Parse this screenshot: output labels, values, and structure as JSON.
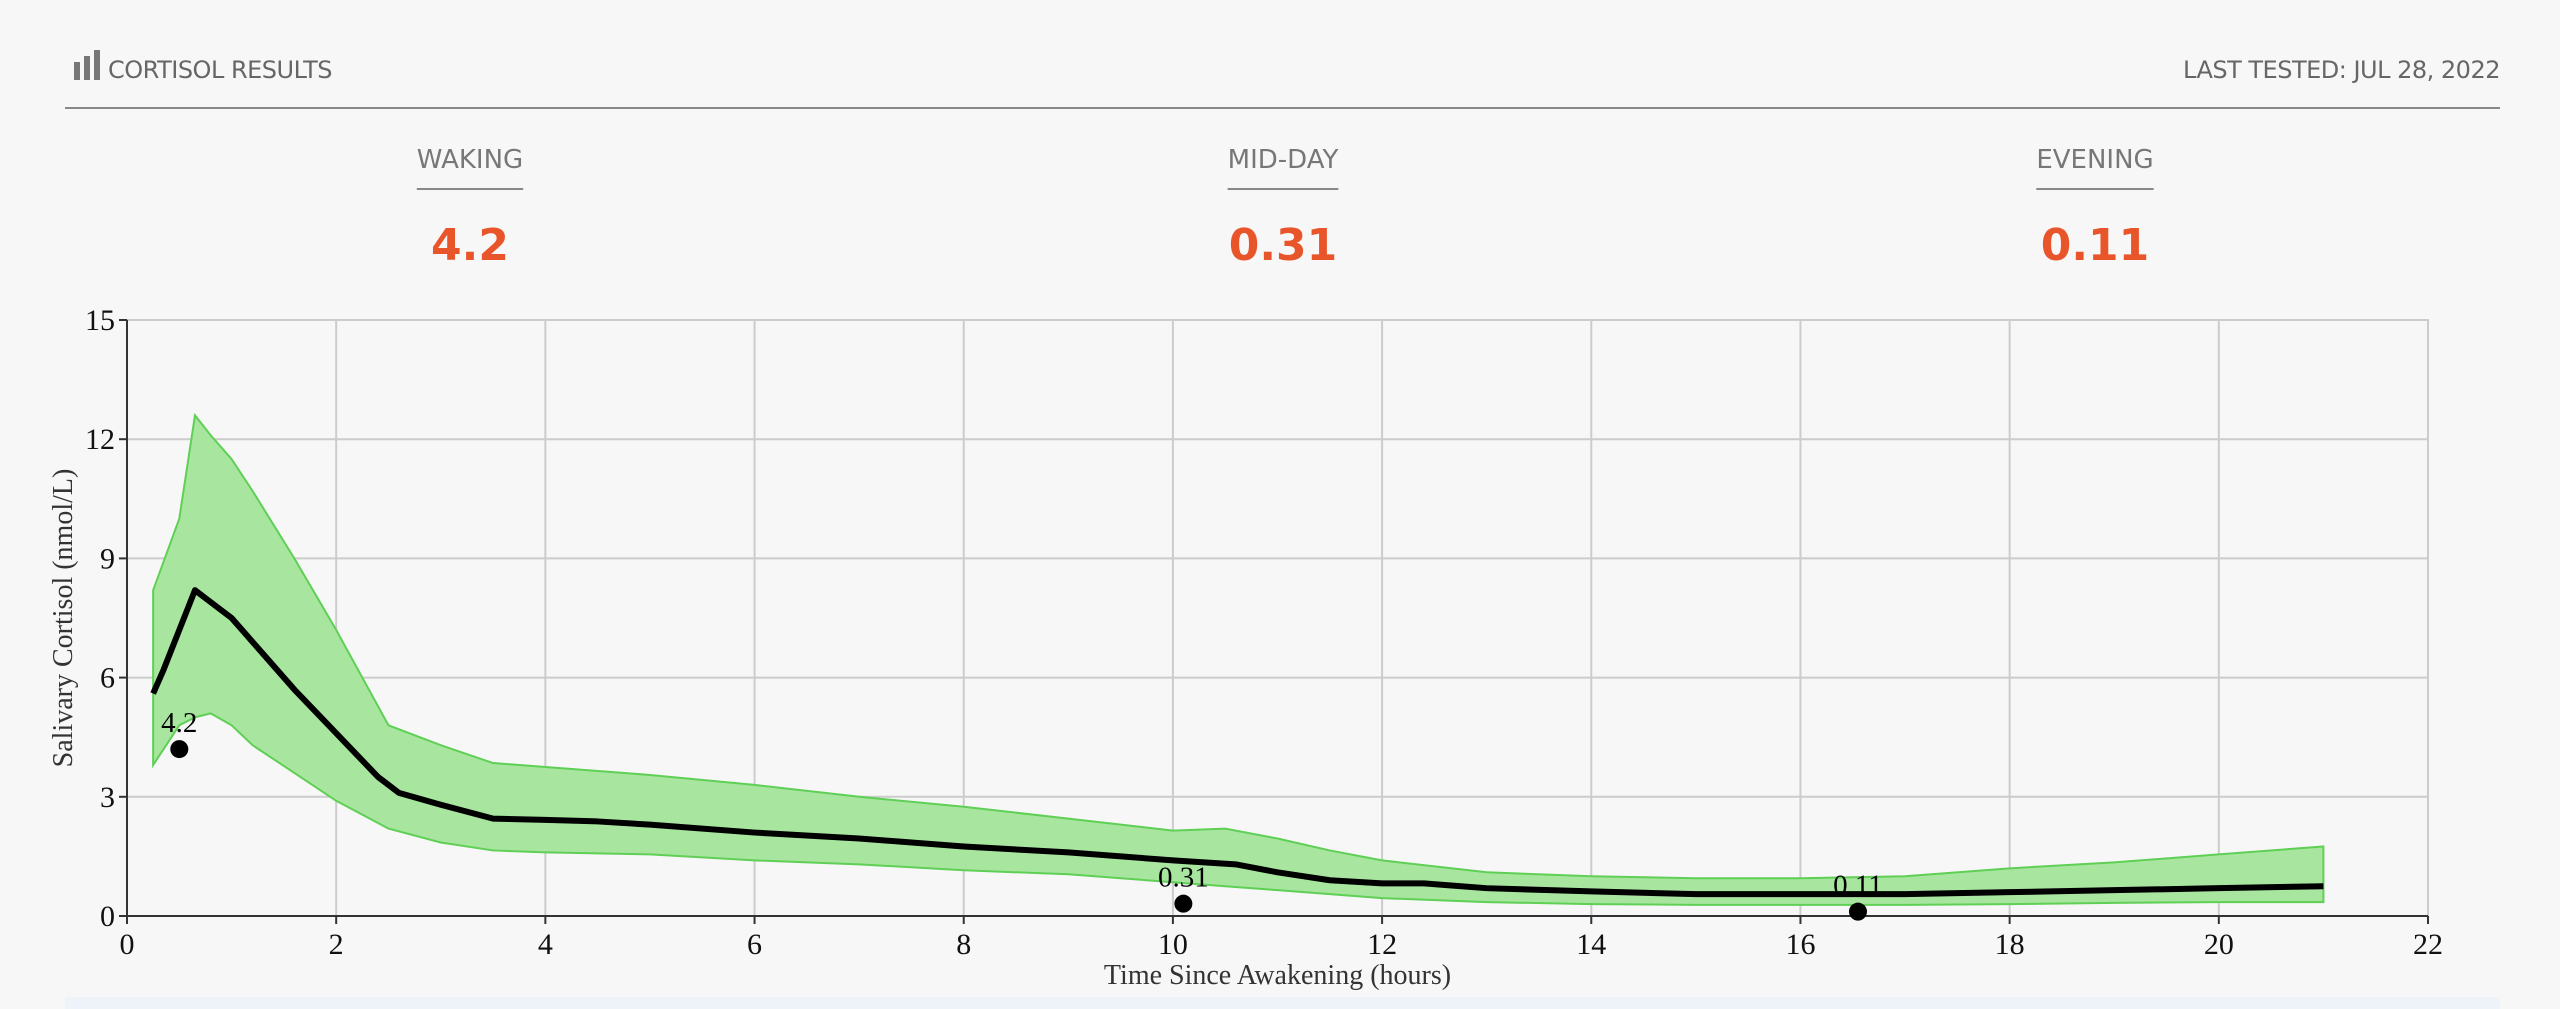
{
  "header": {
    "title": "CORTISOL RESULTS",
    "last_tested": "LAST TESTED: JUL 28, 2022"
  },
  "summary": [
    {
      "label": "WAKING",
      "value": 4.2
    },
    {
      "label": "MID-DAY",
      "value": 0.31
    },
    {
      "label": "EVENING",
      "value": 0.11
    }
  ],
  "chart_data": {
    "type": "line",
    "xlabel": "Time Since Awakening (hours)",
    "ylabel": "Salivary Cortisol (nmol/L)",
    "xlim": [
      0,
      22
    ],
    "xticks": [
      0,
      2,
      4,
      6,
      8,
      10,
      12,
      14,
      16,
      18,
      20,
      22
    ],
    "ylim": [
      0,
      15
    ],
    "yticks": [
      0,
      3,
      6,
      9,
      12,
      15
    ],
    "grid": true,
    "band": {
      "color": "#a8e6a0",
      "edge": "#5fcf55",
      "x": [
        0.25,
        0.5,
        0.65,
        0.8,
        1,
        1.2,
        1.6,
        2,
        2.5,
        3,
        3.5,
        4,
        5,
        6,
        7,
        8,
        9,
        10,
        10.5,
        11,
        11.5,
        12,
        13,
        14,
        15,
        16,
        17,
        18,
        19,
        20,
        21
      ],
      "upper": [
        8.2,
        10,
        12.6,
        12.1,
        11.5,
        10.7,
        9,
        7.2,
        4.8,
        4.3,
        3.85,
        3.75,
        3.55,
        3.3,
        3.0,
        2.75,
        2.45,
        2.15,
        2.2,
        1.95,
        1.65,
        1.4,
        1.1,
        1.0,
        0.95,
        0.95,
        1.0,
        1.2,
        1.35,
        1.55,
        1.75
      ],
      "lower": [
        3.8,
        4.8,
        5.0,
        5.1,
        4.8,
        4.3,
        3.6,
        2.9,
        2.2,
        1.85,
        1.65,
        1.6,
        1.55,
        1.4,
        1.3,
        1.15,
        1.05,
        0.85,
        0.75,
        0.65,
        0.55,
        0.45,
        0.35,
        0.3,
        0.28,
        0.28,
        0.28,
        0.3,
        0.33,
        0.35,
        0.35
      ]
    },
    "line": {
      "color": "#000000",
      "x": [
        0.25,
        0.35,
        0.5,
        0.65,
        0.8,
        1,
        1.2,
        1.6,
        2,
        2.4,
        2.6,
        3,
        3.5,
        4,
        4.5,
        5,
        6,
        7,
        8,
        9,
        10,
        10.6,
        11,
        11.5,
        12,
        12.4,
        13,
        14,
        15,
        16,
        17,
        18,
        19,
        20,
        21
      ],
      "values": [
        5.6,
        6.2,
        7.2,
        8.2,
        7.9,
        7.5,
        6.9,
        5.7,
        4.6,
        3.5,
        3.1,
        2.8,
        2.45,
        2.42,
        2.38,
        2.3,
        2.1,
        1.95,
        1.75,
        1.6,
        1.4,
        1.3,
        1.1,
        0.9,
        0.82,
        0.82,
        0.7,
        0.62,
        0.55,
        0.55,
        0.55,
        0.6,
        0.65,
        0.7,
        0.75
      ]
    },
    "points": {
      "color": "#000000",
      "x": [
        0.5,
        10.1,
        16.55
      ],
      "values": [
        4.2,
        0.31,
        0.11
      ]
    }
  }
}
